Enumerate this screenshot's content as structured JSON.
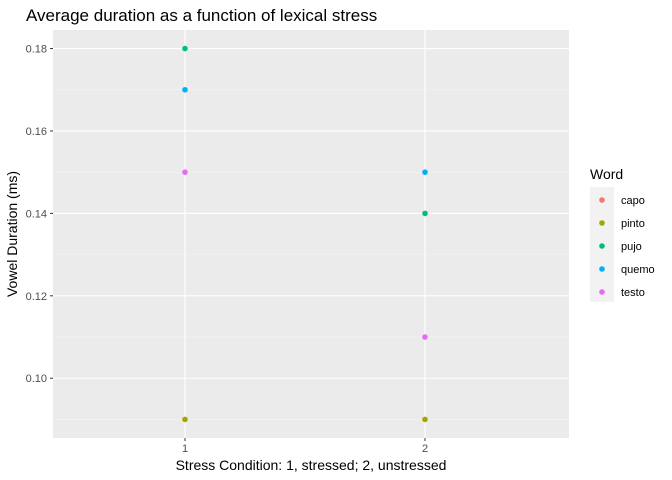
{
  "chart_data": {
    "type": "scatter",
    "title": "Average duration as a function of lexical stress",
    "xlabel": "Stress Condition: 1, stressed; 2, unstressed",
    "ylabel": "Vowel Duration (ms)",
    "x_categories": [
      "1",
      "2"
    ],
    "xlim": [
      0.45,
      2.6
    ],
    "ylim": [
      0.0855,
      0.1845
    ],
    "y_ticks": [
      0.1,
      0.12,
      0.14,
      0.16,
      0.18
    ],
    "y_tick_labels": [
      "0.10",
      "0.12",
      "0.14",
      "0.16",
      "0.18"
    ],
    "grid": true,
    "legend": {
      "title": "Word",
      "position": "right"
    },
    "series": [
      {
        "name": "capo",
        "color": "#F8766D",
        "points": []
      },
      {
        "name": "pinto",
        "color": "#A3A500",
        "points": [
          {
            "x": "1",
            "y": 0.09
          },
          {
            "x": "2",
            "y": 0.09
          }
        ]
      },
      {
        "name": "pujo",
        "color": "#00BF7D",
        "points": [
          {
            "x": "1",
            "y": 0.18
          },
          {
            "x": "2",
            "y": 0.14
          }
        ]
      },
      {
        "name": "quemo",
        "color": "#00B0F6",
        "points": [
          {
            "x": "1",
            "y": 0.17
          },
          {
            "x": "2",
            "y": 0.15
          }
        ]
      },
      {
        "name": "testo",
        "color": "#E76BF3",
        "points": [
          {
            "x": "1",
            "y": 0.15
          },
          {
            "x": "2",
            "y": 0.11
          }
        ]
      }
    ]
  }
}
